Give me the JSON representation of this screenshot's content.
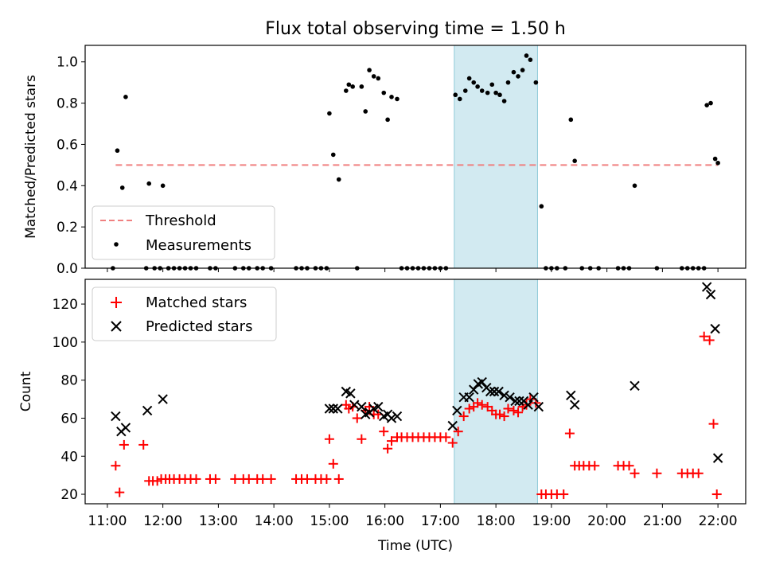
{
  "figure": {
    "title": "Flux total observing time = 1.50 h",
    "xlabel": "Time (UTC)"
  },
  "x_ticks": [
    "11:00",
    "12:00",
    "13:00",
    "14:00",
    "15:00",
    "16:00",
    "17:00",
    "18:00",
    "19:00",
    "20:00",
    "21:00",
    "22:00"
  ],
  "colors": {
    "threshold": "#f08080",
    "measurements": "#000000",
    "matched": "#ff0000",
    "predicted": "#000000",
    "span_fill": "#add8e6"
  },
  "chart_data": [
    {
      "type": "scatter",
      "ylabel": "Matched/Predicted stars",
      "xlim": [
        10.6,
        22.5
      ],
      "ylim": [
        0,
        1.08
      ],
      "y_ticks": [
        "0.0",
        "0.2",
        "0.4",
        "0.6",
        "0.8",
        "1.0"
      ],
      "y_tick_values": [
        0,
        0.2,
        0.4,
        0.6,
        0.8,
        1.0
      ],
      "legend_position": "lower-left",
      "highlight_span": [
        17.25,
        18.75
      ],
      "threshold": {
        "name": "Threshold",
        "y": 0.5,
        "x_range": [
          11.15,
          22.0
        ]
      },
      "series": [
        {
          "name": "Measurements",
          "points": [
            [
              11.1,
              0.0
            ],
            [
              11.18,
              0.57
            ],
            [
              11.27,
              0.39
            ],
            [
              11.33,
              0.83
            ],
            [
              11.7,
              0.0
            ],
            [
              11.75,
              0.41
            ],
            [
              11.85,
              0.0
            ],
            [
              11.95,
              0.0
            ],
            [
              12.0,
              0.4
            ],
            [
              12.1,
              0.0
            ],
            [
              12.2,
              0.0
            ],
            [
              12.3,
              0.0
            ],
            [
              12.4,
              0.0
            ],
            [
              12.5,
              0.0
            ],
            [
              12.6,
              0.0
            ],
            [
              12.85,
              0.0
            ],
            [
              12.95,
              0.0
            ],
            [
              13.3,
              0.0
            ],
            [
              13.45,
              0.0
            ],
            [
              13.55,
              0.0
            ],
            [
              13.7,
              0.0
            ],
            [
              13.8,
              0.0
            ],
            [
              13.95,
              0.0
            ],
            [
              14.4,
              0.0
            ],
            [
              14.5,
              0.0
            ],
            [
              14.6,
              0.0
            ],
            [
              14.75,
              0.0
            ],
            [
              14.85,
              0.0
            ],
            [
              14.95,
              0.0
            ],
            [
              15.0,
              0.75
            ],
            [
              15.07,
              0.55
            ],
            [
              15.17,
              0.43
            ],
            [
              15.3,
              0.86
            ],
            [
              15.35,
              0.89
            ],
            [
              15.42,
              0.88
            ],
            [
              15.5,
              0.0
            ],
            [
              15.58,
              0.88
            ],
            [
              15.65,
              0.76
            ],
            [
              15.72,
              0.96
            ],
            [
              15.8,
              0.93
            ],
            [
              15.88,
              0.92
            ],
            [
              15.98,
              0.85
            ],
            [
              16.05,
              0.72
            ],
            [
              16.12,
              0.83
            ],
            [
              16.22,
              0.82
            ],
            [
              16.3,
              0.0
            ],
            [
              16.4,
              0.0
            ],
            [
              16.5,
              0.0
            ],
            [
              16.6,
              0.0
            ],
            [
              16.7,
              0.0
            ],
            [
              16.8,
              0.0
            ],
            [
              16.9,
              0.0
            ],
            [
              17.0,
              0.0
            ],
            [
              17.1,
              0.0
            ],
            [
              17.27,
              0.84
            ],
            [
              17.35,
              0.82
            ],
            [
              17.45,
              0.86
            ],
            [
              17.52,
              0.92
            ],
            [
              17.6,
              0.9
            ],
            [
              17.67,
              0.88
            ],
            [
              17.75,
              0.86
            ],
            [
              17.85,
              0.85
            ],
            [
              17.93,
              0.89
            ],
            [
              18.0,
              0.85
            ],
            [
              18.07,
              0.84
            ],
            [
              18.15,
              0.81
            ],
            [
              18.22,
              0.9
            ],
            [
              18.32,
              0.95
            ],
            [
              18.4,
              0.93
            ],
            [
              18.48,
              0.96
            ],
            [
              18.55,
              1.03
            ],
            [
              18.62,
              1.01
            ],
            [
              18.72,
              0.9
            ],
            [
              18.82,
              0.3
            ],
            [
              18.9,
              0.0
            ],
            [
              19.0,
              0.0
            ],
            [
              19.1,
              0.0
            ],
            [
              19.25,
              0.0
            ],
            [
              19.35,
              0.72
            ],
            [
              19.42,
              0.52
            ],
            [
              19.55,
              0.0
            ],
            [
              19.7,
              0.0
            ],
            [
              19.85,
              0.0
            ],
            [
              20.2,
              0.0
            ],
            [
              20.3,
              0.0
            ],
            [
              20.4,
              0.0
            ],
            [
              20.5,
              0.4
            ],
            [
              20.9,
              0.0
            ],
            [
              21.35,
              0.0
            ],
            [
              21.45,
              0.0
            ],
            [
              21.55,
              0.0
            ],
            [
              21.65,
              0.0
            ],
            [
              21.75,
              0.0
            ],
            [
              21.8,
              0.79
            ],
            [
              21.87,
              0.8
            ],
            [
              21.95,
              0.53
            ],
            [
              22.0,
              0.51
            ]
          ]
        }
      ]
    },
    {
      "type": "scatter",
      "ylabel": "Count",
      "xlim": [
        10.6,
        22.5
      ],
      "ylim": [
        15,
        133
      ],
      "y_ticks": [
        "20",
        "40",
        "60",
        "80",
        "100",
        "120"
      ],
      "y_tick_values": [
        20,
        40,
        60,
        80,
        100,
        120
      ],
      "legend_position": "upper-left",
      "highlight_span": [
        17.25,
        18.75
      ],
      "series": [
        {
          "name": "Matched stars",
          "marker": "+",
          "points": [
            [
              11.15,
              35
            ],
            [
              11.22,
              21
            ],
            [
              11.3,
              46
            ],
            [
              11.65,
              46
            ],
            [
              11.75,
              27
            ],
            [
              11.82,
              27
            ],
            [
              11.9,
              27
            ],
            [
              11.97,
              28
            ],
            [
              12.05,
              28
            ],
            [
              12.12,
              28
            ],
            [
              12.2,
              28
            ],
            [
              12.3,
              28
            ],
            [
              12.4,
              28
            ],
            [
              12.5,
              28
            ],
            [
              12.6,
              28
            ],
            [
              12.85,
              28
            ],
            [
              12.95,
              28
            ],
            [
              13.3,
              28
            ],
            [
              13.45,
              28
            ],
            [
              13.55,
              28
            ],
            [
              13.7,
              28
            ],
            [
              13.8,
              28
            ],
            [
              13.95,
              28
            ],
            [
              14.4,
              28
            ],
            [
              14.5,
              28
            ],
            [
              14.6,
              28
            ],
            [
              14.75,
              28
            ],
            [
              14.85,
              28
            ],
            [
              14.95,
              28
            ],
            [
              15.0,
              49
            ],
            [
              15.07,
              36
            ],
            [
              15.17,
              28
            ],
            [
              15.3,
              67
            ],
            [
              15.35,
              65
            ],
            [
              15.42,
              66
            ],
            [
              15.5,
              60
            ],
            [
              15.58,
              49
            ],
            [
              15.65,
              64
            ],
            [
              15.72,
              66
            ],
            [
              15.8,
              62
            ],
            [
              15.88,
              62
            ],
            [
              15.98,
              53
            ],
            [
              16.05,
              44
            ],
            [
              16.12,
              48
            ],
            [
              16.22,
              50
            ],
            [
              16.3,
              50
            ],
            [
              16.4,
              50
            ],
            [
              16.5,
              50
            ],
            [
              16.6,
              50
            ],
            [
              16.7,
              50
            ],
            [
              16.8,
              50
            ],
            [
              16.9,
              50
            ],
            [
              17.0,
              50
            ],
            [
              17.1,
              50
            ],
            [
              17.22,
              47
            ],
            [
              17.32,
              53
            ],
            [
              17.42,
              61
            ],
            [
              17.52,
              65
            ],
            [
              17.6,
              66
            ],
            [
              17.67,
              68
            ],
            [
              17.75,
              67
            ],
            [
              17.85,
              66
            ],
            [
              17.93,
              64
            ],
            [
              18.0,
              62
            ],
            [
              18.07,
              62
            ],
            [
              18.15,
              61
            ],
            [
              18.22,
              65
            ],
            [
              18.32,
              64
            ],
            [
              18.4,
              63
            ],
            [
              18.48,
              66
            ],
            [
              18.55,
              67
            ],
            [
              18.62,
              70
            ],
            [
              18.72,
              68
            ],
            [
              18.82,
              20
            ],
            [
              18.9,
              20
            ],
            [
              19.0,
              20
            ],
            [
              19.1,
              20
            ],
            [
              19.22,
              20
            ],
            [
              19.33,
              52
            ],
            [
              19.42,
              35
            ],
            [
              19.5,
              35
            ],
            [
              19.58,
              35
            ],
            [
              19.68,
              35
            ],
            [
              19.78,
              35
            ],
            [
              20.2,
              35
            ],
            [
              20.3,
              35
            ],
            [
              20.4,
              35
            ],
            [
              20.5,
              31
            ],
            [
              20.9,
              31
            ],
            [
              21.35,
              31
            ],
            [
              21.45,
              31
            ],
            [
              21.55,
              31
            ],
            [
              21.65,
              31
            ],
            [
              21.75,
              103
            ],
            [
              21.85,
              101
            ],
            [
              21.92,
              57
            ],
            [
              21.98,
              20
            ]
          ]
        },
        {
          "name": "Predicted stars",
          "marker": "x",
          "points": [
            [
              11.15,
              61
            ],
            [
              11.25,
              53
            ],
            [
              11.33,
              55
            ],
            [
              11.72,
              64
            ],
            [
              12.0,
              70
            ],
            [
              15.0,
              65
            ],
            [
              15.07,
              65
            ],
            [
              15.15,
              65
            ],
            [
              15.3,
              74
            ],
            [
              15.38,
              73
            ],
            [
              15.45,
              67
            ],
            [
              15.58,
              66
            ],
            [
              15.65,
              62
            ],
            [
              15.72,
              63
            ],
            [
              15.8,
              65
            ],
            [
              15.88,
              66
            ],
            [
              15.98,
              61
            ],
            [
              16.05,
              62
            ],
            [
              16.12,
              60
            ],
            [
              16.22,
              61
            ],
            [
              17.22,
              56
            ],
            [
              17.3,
              64
            ],
            [
              17.42,
              71
            ],
            [
              17.52,
              71
            ],
            [
              17.6,
              75
            ],
            [
              17.68,
              78
            ],
            [
              17.75,
              79
            ],
            [
              17.83,
              76
            ],
            [
              17.9,
              74
            ],
            [
              17.97,
              74
            ],
            [
              18.05,
              74
            ],
            [
              18.15,
              72
            ],
            [
              18.25,
              71
            ],
            [
              18.35,
              69
            ],
            [
              18.42,
              69
            ],
            [
              18.5,
              69
            ],
            [
              18.58,
              67
            ],
            [
              18.68,
              71
            ],
            [
              18.77,
              66
            ],
            [
              19.35,
              72
            ],
            [
              19.42,
              67
            ],
            [
              20.5,
              77
            ],
            [
              21.8,
              129
            ],
            [
              21.87,
              125
            ],
            [
              21.95,
              107
            ],
            [
              22.0,
              39
            ]
          ]
        }
      ]
    }
  ]
}
